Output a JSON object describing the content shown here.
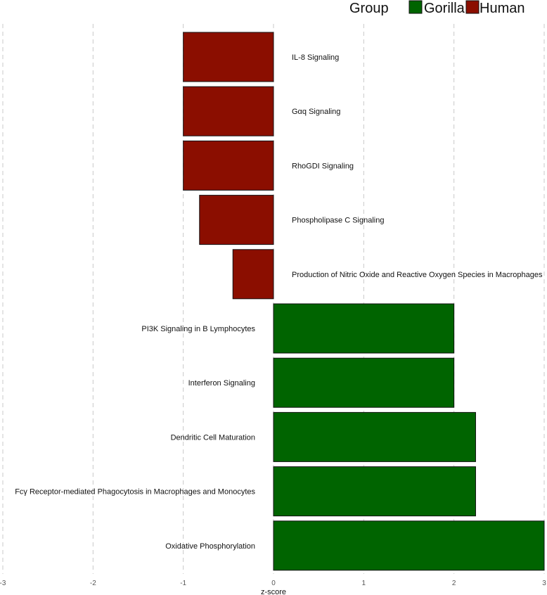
{
  "chart_data": {
    "type": "bar",
    "orientation": "horizontal",
    "title": "",
    "xlabel": "z-score",
    "ylabel": "",
    "xlim": [
      -3,
      3
    ],
    "xticks": [
      -3,
      -2,
      -1,
      0,
      1,
      2,
      3
    ],
    "grid": true,
    "legend": {
      "title": "Group",
      "placement": "top-right",
      "entries": [
        {
          "name": "Gorilla",
          "color": "#006400"
        },
        {
          "name": "Human",
          "color": "#8B0E00"
        }
      ]
    },
    "categories": [
      "IL-8 Signaling",
      "Gαq Signaling",
      "RhoGDI Signaling",
      "Phospholipase C Signaling",
      "Production of Nitric Oxide and Reactive Oxygen Species in Macrophages",
      "PI3K Signaling in B Lymphocytes",
      "Interferon Signaling",
      "Dendritic Cell Maturation",
      "Fcγ Receptor-mediated Phagocytosis in Macrophages and Monocytes",
      "Oxidative Phosphorylation"
    ],
    "values": [
      -1.0,
      -1.0,
      -1.0,
      -0.82,
      -0.45,
      2.0,
      2.0,
      2.24,
      2.24,
      3.0
    ],
    "groups": [
      "Human",
      "Human",
      "Human",
      "Human",
      "Human",
      "Gorilla",
      "Gorilla",
      "Gorilla",
      "Gorilla",
      "Gorilla"
    ]
  }
}
